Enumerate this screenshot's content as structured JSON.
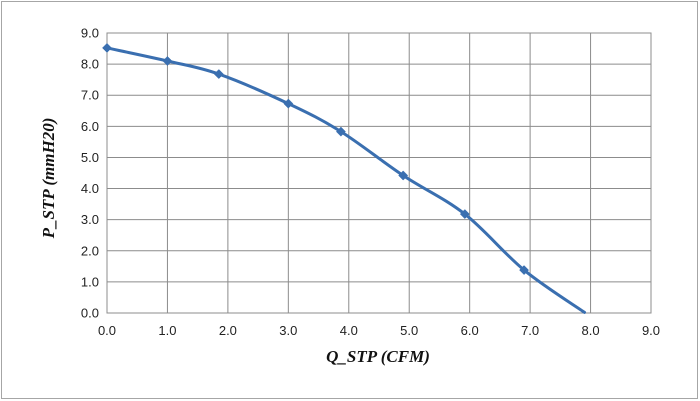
{
  "chart_data": {
    "type": "line",
    "title": "",
    "xlabel": "Q_STP (CFM)",
    "ylabel": "P_STP (mmH20)",
    "xlim": [
      0,
      9
    ],
    "ylim": [
      0,
      9
    ],
    "x_ticks": [
      "0.0",
      "1.0",
      "2.0",
      "3.0",
      "4.0",
      "5.0",
      "6.0",
      "7.0",
      "8.0",
      "9.0"
    ],
    "y_ticks": [
      "0.0",
      "1.0",
      "2.0",
      "3.0",
      "4.0",
      "5.0",
      "6.0",
      "7.0",
      "8.0",
      "9.0"
    ],
    "grid": true,
    "legend": "none",
    "series_color": "#3a6fb0",
    "grid_color": "#8c8c8c",
    "series": [
      {
        "marker": "diamond",
        "x": [
          0.0,
          1.0,
          1.85,
          3.0,
          3.87,
          4.9,
          5.92,
          6.9,
          7.9
        ],
        "y": [
          8.52,
          8.1,
          7.68,
          6.73,
          5.83,
          4.42,
          3.18,
          1.38,
          0.02
        ],
        "markers": [
          true,
          true,
          true,
          true,
          true,
          true,
          true,
          true,
          false
        ]
      }
    ]
  }
}
